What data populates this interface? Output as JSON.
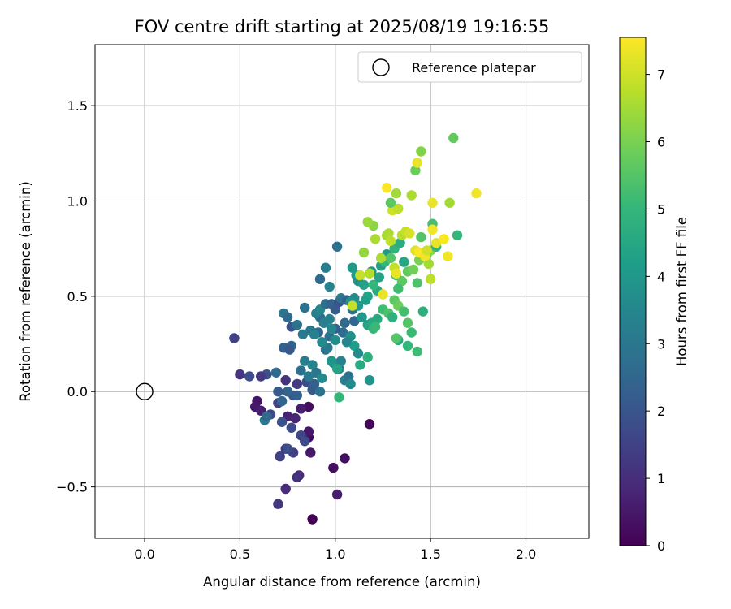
{
  "chart_data": {
    "type": "scatter",
    "title": "FOV centre drift starting at 2025/08/19 19:16:55",
    "xlabel": "Angular distance from reference (arcmin)",
    "ylabel": "Rotation from reference (arcmin)",
    "xlim": [
      -0.26,
      2.33
    ],
    "ylim": [
      -0.77,
      1.82
    ],
    "xticks": [
      0.0,
      0.5,
      1.0,
      1.5,
      2.0
    ],
    "xtick_labels": [
      "0.0",
      "0.5",
      "1.0",
      "1.5",
      "2.0"
    ],
    "yticks": [
      -0.5,
      0.0,
      0.5,
      1.0,
      1.5
    ],
    "ytick_labels": [
      "−0.5",
      "0.0",
      "0.5",
      "1.0",
      "1.5"
    ],
    "grid": true,
    "legend": {
      "position": "top-right",
      "entries": [
        "Reference platepar"
      ]
    },
    "reference_point": {
      "name": "Reference platepar",
      "x": 0.0,
      "y": 0.0,
      "marker": "open-circle"
    },
    "colorbar": {
      "label": "Hours from first FF file",
      "range": [
        0,
        7.55
      ],
      "ticks": [
        0,
        1,
        2,
        3,
        4,
        5,
        6,
        7
      ],
      "tick_labels": [
        "0",
        "1",
        "2",
        "3",
        "4",
        "5",
        "6",
        "7"
      ],
      "colormap": "viridis",
      "colormap_stops": [
        "#440154",
        "#482878",
        "#3e4989",
        "#31688e",
        "#26828e",
        "#1f9e89",
        "#35b779",
        "#6ece58",
        "#b5de2b",
        "#fde725"
      ]
    },
    "point_fields": [
      "x_arcmin",
      "y_arcmin",
      "hours"
    ],
    "points": [
      [
        0.88,
        -0.67,
        0.0
      ],
      [
        1.18,
        -0.17,
        0.1
      ],
      [
        0.99,
        -0.4,
        0.3
      ],
      [
        1.05,
        -0.35,
        0.3
      ],
      [
        0.86,
        -0.24,
        0.2
      ],
      [
        0.86,
        -0.21,
        0.5
      ],
      [
        0.87,
        -0.32,
        0.5
      ],
      [
        1.01,
        -0.54,
        0.6
      ],
      [
        0.59,
        -0.05,
        0.4
      ],
      [
        0.58,
        -0.08,
        0.5
      ],
      [
        0.61,
        -0.1,
        0.6
      ],
      [
        0.75,
        -0.13,
        0.7
      ],
      [
        0.79,
        -0.14,
        0.8
      ],
      [
        0.86,
        -0.08,
        0.3
      ],
      [
        0.82,
        -0.09,
        0.6
      ],
      [
        0.74,
        -0.51,
        1.0
      ],
      [
        0.81,
        -0.44,
        0.9
      ],
      [
        0.8,
        -0.45,
        1.1
      ],
      [
        0.7,
        -0.59,
        1.2
      ],
      [
        0.74,
        -0.3,
        1.3
      ],
      [
        0.78,
        -0.32,
        1.4
      ],
      [
        0.71,
        -0.34,
        1.5
      ],
      [
        0.82,
        -0.23,
        1.6
      ],
      [
        0.84,
        -0.26,
        1.7
      ],
      [
        0.75,
        -0.3,
        1.8
      ],
      [
        0.7,
        -0.06,
        1.5
      ],
      [
        0.72,
        -0.16,
        1.9
      ],
      [
        0.66,
        -0.12,
        1.7
      ],
      [
        0.74,
        0.06,
        1.1
      ],
      [
        0.8,
        0.04,
        1.3
      ],
      [
        0.85,
        0.05,
        1.8
      ],
      [
        0.88,
        0.01,
        2.1
      ],
      [
        0.78,
        -0.02,
        2.0
      ],
      [
        0.75,
        0.0,
        2.4
      ],
      [
        0.7,
        0.0,
        2.2
      ],
      [
        0.72,
        -0.05,
        2.5
      ],
      [
        0.69,
        0.1,
        2.6
      ],
      [
        0.64,
        0.09,
        1.9
      ],
      [
        0.61,
        0.08,
        1.3
      ],
      [
        0.55,
        0.08,
        1.8
      ],
      [
        0.5,
        0.09,
        1.2
      ],
      [
        0.47,
        0.28,
        1.5
      ],
      [
        0.73,
        0.23,
        2.3
      ],
      [
        0.77,
        0.24,
        2.4
      ],
      [
        0.76,
        0.22,
        2.1
      ],
      [
        0.77,
        0.34,
        2.0
      ],
      [
        0.8,
        0.35,
        2.9
      ],
      [
        0.83,
        0.3,
        3.1
      ],
      [
        0.73,
        0.41,
        3.0
      ],
      [
        0.75,
        0.39,
        2.6
      ],
      [
        0.84,
        0.16,
        3.2
      ],
      [
        0.82,
        0.11,
        2.8
      ],
      [
        0.88,
        0.14,
        3.4
      ],
      [
        0.9,
        0.1,
        3.0
      ],
      [
        0.93,
        0.07,
        3.6
      ],
      [
        0.95,
        0.22,
        2.8
      ],
      [
        0.91,
        0.31,
        2.5
      ],
      [
        0.92,
        0.39,
        2.6
      ],
      [
        0.94,
        0.36,
        3.2
      ],
      [
        0.87,
        0.32,
        3.0
      ],
      [
        0.89,
        0.3,
        3.3
      ],
      [
        0.9,
        0.41,
        3.3
      ],
      [
        0.92,
        0.43,
        3.5
      ],
      [
        0.95,
        0.46,
        2.7
      ],
      [
        0.98,
        0.46,
        2.4
      ],
      [
        1.0,
        0.43,
        2.2
      ],
      [
        1.02,
        0.47,
        2.0
      ],
      [
        1.03,
        0.49,
        3.0
      ],
      [
        1.06,
        0.48,
        2.4
      ],
      [
        1.09,
        0.43,
        2.9
      ],
      [
        1.1,
        0.37,
        2.5
      ],
      [
        1.05,
        0.36,
        2.6
      ],
      [
        1.04,
        0.31,
        2.7
      ],
      [
        1.0,
        0.33,
        2.3
      ],
      [
        0.97,
        0.29,
        2.8
      ],
      [
        0.96,
        0.23,
        3.0
      ],
      [
        0.99,
        0.15,
        3.4
      ],
      [
        1.02,
        0.12,
        3.2
      ],
      [
        1.05,
        0.06,
        3.3
      ],
      [
        1.07,
        0.08,
        2.8
      ],
      [
        1.08,
        0.04,
        3.6
      ],
      [
        1.03,
        0.16,
        3.4
      ],
      [
        1.08,
        0.29,
        3.8
      ],
      [
        1.1,
        0.24,
        4.2
      ],
      [
        1.12,
        0.2,
        3.7
      ],
      [
        1.13,
        0.14,
        4.6
      ],
      [
        1.17,
        0.18,
        4.8
      ],
      [
        1.18,
        0.06,
        3.9
      ],
      [
        1.02,
        -0.03,
        5.0
      ],
      [
        1.06,
        0.26,
        3.5
      ],
      [
        1.0,
        0.27,
        3.7
      ],
      [
        0.98,
        0.33,
        3.5
      ],
      [
        0.97,
        0.38,
        3.3
      ],
      [
        0.97,
        0.55,
        3.4
      ],
      [
        0.95,
        0.65,
        3.2
      ],
      [
        0.92,
        0.59,
        2.6
      ],
      [
        0.84,
        0.44,
        2.8
      ],
      [
        1.01,
        0.76,
        2.8
      ],
      [
        1.09,
        0.65,
        4.0
      ],
      [
        1.11,
        0.61,
        4.2
      ],
      [
        1.12,
        0.58,
        3.9
      ],
      [
        1.15,
        0.56,
        4.3
      ],
      [
        1.17,
        0.5,
        4.4
      ],
      [
        1.16,
        0.48,
        4.2
      ],
      [
        1.12,
        0.45,
        4.0
      ],
      [
        1.1,
        0.49,
        3.6
      ],
      [
        1.08,
        0.47,
        3.8
      ],
      [
        1.14,
        0.39,
        4.0
      ],
      [
        1.17,
        0.35,
        4.4
      ],
      [
        1.2,
        0.33,
        5.0
      ],
      [
        1.19,
        0.36,
        4.5
      ],
      [
        1.22,
        0.38,
        4.6
      ],
      [
        1.25,
        0.43,
        5.2
      ],
      [
        1.28,
        0.41,
        5.4
      ],
      [
        1.3,
        0.39,
        4.8
      ],
      [
        1.31,
        0.48,
        5.6
      ],
      [
        1.33,
        0.45,
        5.8
      ],
      [
        1.36,
        0.42,
        5.3
      ],
      [
        1.38,
        0.36,
        5.5
      ],
      [
        1.4,
        0.31,
        5.1
      ],
      [
        1.38,
        0.24,
        5.0
      ],
      [
        1.43,
        0.21,
        5.2
      ],
      [
        1.46,
        0.42,
        4.8
      ],
      [
        1.33,
        0.27,
        4.6
      ],
      [
        1.32,
        0.28,
        5.5
      ],
      [
        1.22,
        0.53,
        4.6
      ],
      [
        1.2,
        0.56,
        5.0
      ],
      [
        1.23,
        0.6,
        4.4
      ],
      [
        1.19,
        0.63,
        3.9
      ],
      [
        1.24,
        0.66,
        4.3
      ],
      [
        1.27,
        0.72,
        4.1
      ],
      [
        1.26,
        0.68,
        5.0
      ],
      [
        1.29,
        0.7,
        5.5
      ],
      [
        1.31,
        0.75,
        4.9
      ],
      [
        1.34,
        0.78,
        4.7
      ],
      [
        1.36,
        0.68,
        4.5
      ],
      [
        1.32,
        0.61,
        5.3
      ],
      [
        1.35,
        0.58,
        5.6
      ],
      [
        1.33,
        0.54,
        5.2
      ],
      [
        1.38,
        0.63,
        5.7
      ],
      [
        1.41,
        0.64,
        5.9
      ],
      [
        1.43,
        0.57,
        5.4
      ],
      [
        1.44,
        0.69,
        6.0
      ],
      [
        1.45,
        0.81,
        5.5
      ],
      [
        1.48,
        0.72,
        5.7
      ],
      [
        1.5,
        0.74,
        6.2
      ],
      [
        1.51,
        0.88,
        5.3
      ],
      [
        1.53,
        0.76,
        4.9
      ],
      [
        1.64,
        0.82,
        5.0
      ],
      [
        1.5,
        0.59,
        6.8
      ],
      [
        1.49,
        0.67,
        6.5
      ],
      [
        1.2,
        0.87,
        6.2
      ],
      [
        1.17,
        0.89,
        6.4
      ],
      [
        1.15,
        0.73,
        6.3
      ],
      [
        1.13,
        0.61,
        6.9
      ],
      [
        1.24,
        0.7,
        6.6
      ],
      [
        1.27,
        0.82,
        6.5
      ],
      [
        1.28,
        0.83,
        6.6
      ],
      [
        1.29,
        0.79,
        6.8
      ],
      [
        1.31,
        0.65,
        6.9
      ],
      [
        1.32,
        0.62,
        7.3
      ],
      [
        1.35,
        0.82,
        6.7
      ],
      [
        1.37,
        0.84,
        6.9
      ],
      [
        1.39,
        0.83,
        7.1
      ],
      [
        1.42,
        0.74,
        7.2
      ],
      [
        1.44,
        0.73,
        7.5
      ],
      [
        1.47,
        0.71,
        7.4
      ],
      [
        1.48,
        0.74,
        7.0
      ],
      [
        1.53,
        0.78,
        7.3
      ],
      [
        1.57,
        0.8,
        7.5
      ],
      [
        1.59,
        0.71,
        7.4
      ],
      [
        1.51,
        0.85,
        7.4
      ],
      [
        1.3,
        0.95,
        7.0
      ],
      [
        1.33,
        0.96,
        6.8
      ],
      [
        1.29,
        0.99,
        5.6
      ],
      [
        1.32,
        1.04,
        6.5
      ],
      [
        1.27,
        1.07,
        7.5
      ],
      [
        1.4,
        1.03,
        6.6
      ],
      [
        1.42,
        1.16,
        5.8
      ],
      [
        1.43,
        1.2,
        7.3
      ],
      [
        1.45,
        1.26,
        6.1
      ],
      [
        1.51,
        0.99,
        7.3
      ],
      [
        1.6,
        0.99,
        6.5
      ],
      [
        1.62,
        1.33,
        5.7
      ],
      [
        1.74,
        1.04,
        7.4
      ],
      [
        1.21,
        0.8,
        6.6
      ],
      [
        1.18,
        0.62,
        6.7
      ],
      [
        1.09,
        0.45,
        6.9
      ],
      [
        1.25,
        0.51,
        7.3
      ],
      [
        1.21,
        0.34,
        5.1
      ],
      [
        1.01,
        0.12,
        4.4
      ],
      [
        0.98,
        0.16,
        3.9
      ],
      [
        0.92,
        0.0,
        2.9
      ],
      [
        0.89,
        0.04,
        2.3
      ],
      [
        0.86,
        0.08,
        3.1
      ],
      [
        0.63,
        -0.15,
        3.1
      ],
      [
        0.64,
        -0.13,
        2.6
      ],
      [
        0.77,
        -0.19,
        1.7
      ],
      [
        0.8,
        -0.02,
        2.3
      ],
      [
        0.93,
        0.26,
        3.6
      ]
    ]
  }
}
